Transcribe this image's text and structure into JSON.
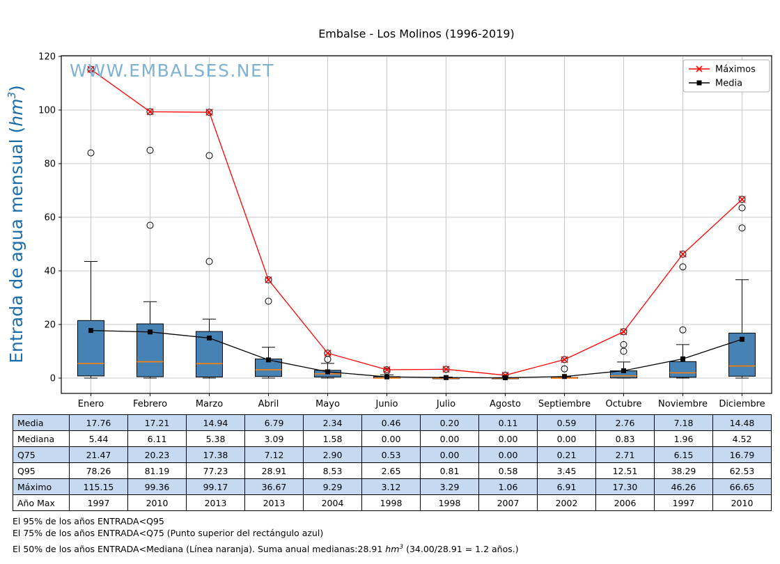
{
  "title": "Embalse - Los Molinos (1996-2019)",
  "watermark": "WWW.EMBALSES.NET",
  "legend": {
    "maximos": "Máximos",
    "media": "Media"
  },
  "ylabel": {
    "prefix": "Entrada de agua mensual (",
    "unit": "hm",
    "sup": "3",
    "suffix": ")"
  },
  "colors": {
    "box_fill": "#4682b4",
    "median": "#ff7f0e",
    "max_line": "#ff0000",
    "mean_line": "#000000",
    "grid": "#c8c8c8",
    "axis": "#000000",
    "ylabel": "#1b6ea8",
    "watermark": "#7fb1d2",
    "table_row_blue": "#c5d9f1",
    "legend_border": "#b0b0b0"
  },
  "chart_data": {
    "type": "boxplot+lines",
    "title": "Embalse - Los Molinos (1996-2019)",
    "xlabel": "",
    "ylabel": "Entrada de agua mensual (hm3)",
    "grid": true,
    "legend_position": "upper right",
    "yticks": [
      0,
      20,
      40,
      60,
      80,
      100,
      120
    ],
    "ylim": [
      -5.7,
      120.3
    ],
    "categories": [
      "Enero",
      "Febrero",
      "Marzo",
      "Abril",
      "Mayo",
      "Junio",
      "Julio",
      "Agosto",
      "Septiembre",
      "Octubre",
      "Noviembre",
      "Diciembre"
    ],
    "series": [
      {
        "name": "Máximos",
        "type": "line",
        "marker": "x",
        "color": "#ff0000",
        "values": [
          115.15,
          99.36,
          99.17,
          36.67,
          9.29,
          3.12,
          3.29,
          1.06,
          6.91,
          17.3,
          46.26,
          66.65
        ]
      },
      {
        "name": "Media",
        "type": "line",
        "marker": "square",
        "color": "#000000",
        "values": [
          17.76,
          17.21,
          14.94,
          6.79,
          2.34,
          0.46,
          0.2,
          0.11,
          0.59,
          2.76,
          7.18,
          14.48
        ]
      }
    ],
    "boxes": {
      "q25": [
        0.8,
        0.5,
        0.4,
        0.6,
        0.4,
        0.0,
        0.0,
        0.0,
        0.0,
        0.05,
        0.3,
        0.7
      ],
      "median": [
        5.44,
        6.11,
        5.38,
        3.09,
        1.58,
        0.0,
        0.0,
        0.0,
        0.0,
        0.83,
        1.96,
        4.52
      ],
      "q75": [
        21.47,
        20.23,
        17.38,
        7.12,
        2.9,
        0.53,
        0.0,
        0.0,
        0.21,
        2.71,
        6.15,
        16.79
      ],
      "whisker_low": [
        0,
        0,
        0,
        0,
        0,
        0,
        0,
        0,
        0,
        0,
        0,
        0
      ],
      "whisker_high": [
        43.5,
        28.5,
        22.0,
        11.5,
        5.5,
        1.2,
        0.4,
        0.2,
        0.5,
        6.0,
        12.5,
        36.7
      ],
      "fliers": [
        [
          115.15,
          84.0
        ],
        [
          99.36,
          85.0,
          57.0
        ],
        [
          99.17,
          83.0,
          43.5
        ],
        [
          36.67,
          28.7
        ],
        [
          9.29,
          7.0
        ],
        [
          3.12,
          2.6
        ],
        [
          3.29
        ],
        [
          1.06
        ],
        [
          6.91,
          3.45
        ],
        [
          17.3,
          12.5,
          10.0
        ],
        [
          46.26,
          41.5,
          18.0
        ],
        [
          66.65,
          63.5,
          56.0
        ]
      ]
    }
  },
  "table": {
    "rows": [
      {
        "label": "Media",
        "values": [
          "17.76",
          "17.21",
          "14.94",
          "6.79",
          "2.34",
          "0.46",
          "0.20",
          "0.11",
          "0.59",
          "2.76",
          "7.18",
          "14.48"
        ]
      },
      {
        "label": "Mediana",
        "values": [
          "5.44",
          "6.11",
          "5.38",
          "3.09",
          "1.58",
          "0.00",
          "0.00",
          "0.00",
          "0.00",
          "0.83",
          "1.96",
          "4.52"
        ]
      },
      {
        "label": "Q75",
        "values": [
          "21.47",
          "20.23",
          "17.38",
          "7.12",
          "2.90",
          "0.53",
          "0.00",
          "0.00",
          "0.21",
          "2.71",
          "6.15",
          "16.79"
        ]
      },
      {
        "label": "Q95",
        "values": [
          "78.26",
          "81.19",
          "77.23",
          "28.91",
          "8.53",
          "2.65",
          "0.81",
          "0.58",
          "3.45",
          "12.51",
          "38.29",
          "62.53"
        ]
      },
      {
        "label": "Máximo",
        "values": [
          "115.15",
          "99.36",
          "99.17",
          "36.67",
          "9.29",
          "3.12",
          "3.29",
          "1.06",
          "6.91",
          "17.30",
          "46.26",
          "66.65"
        ]
      },
      {
        "label": "Año Max",
        "values": [
          "1997",
          "2010",
          "2013",
          "2013",
          "2004",
          "1998",
          "1998",
          "2007",
          "2002",
          "2006",
          "1997",
          "2010"
        ]
      }
    ]
  },
  "footnotes": {
    "line1": "El 95% de los años ENTRADA<Q95",
    "line2": "El 75% de los años ENTRADA<Q75 (Punto superior del rectángulo azul)",
    "line3_prefix": "El 50% de los años ENTRADA<Mediana (Línea naranja). Suma anual medianas:28.91 ",
    "line3_unit": "hm",
    "line3_sup": "3",
    "line3_suffix": " (34.00/28.91 = 1.2 años.)"
  }
}
